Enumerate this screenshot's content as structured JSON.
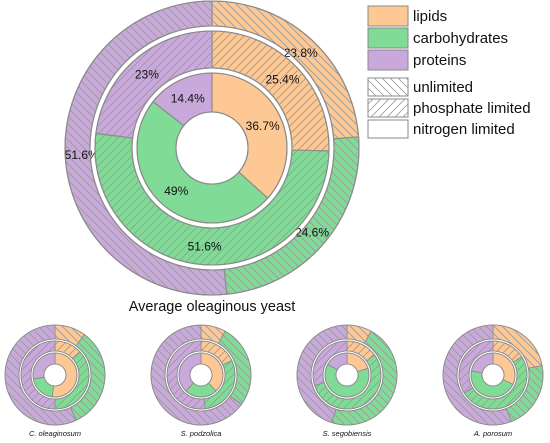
{
  "colors": {
    "lipids": "#fdc893",
    "carbohydrates": "#7fdb95",
    "proteins": "#c9a8dc",
    "stroke": "#8a8a8a",
    "hatch": "#9a9a9a"
  },
  "legend": {
    "components": [
      {
        "key": "lipids",
        "label": "lipids"
      },
      {
        "key": "carbohydrates",
        "label": "carbohydrates"
      },
      {
        "key": "proteins",
        "label": "proteins"
      }
    ],
    "conditions": [
      {
        "key": "unlimited",
        "label": "unlimited",
        "hatch": "backslash"
      },
      {
        "key": "phosphate",
        "label": "phosphate limited",
        "hatch": "slash"
      },
      {
        "key": "nitrogen",
        "label": "nitrogen limited",
        "hatch": "none"
      }
    ],
    "placement": "top-right"
  },
  "chart_data": [
    {
      "type": "pie",
      "variant": "nested-donut",
      "title": "Average oleaginous yeast",
      "ring_order": [
        "unlimited",
        "phosphate limited",
        "nitrogen limited"
      ],
      "categories": [
        "lipids",
        "carbohydrates",
        "proteins"
      ],
      "rings": [
        {
          "condition": "unlimited",
          "values": [
            23.8,
            24.6,
            51.6
          ],
          "labels": [
            "23.8%",
            "24.6%",
            "51.6%"
          ]
        },
        {
          "condition": "phosphate limited",
          "values": [
            25.4,
            51.6,
            23.0
          ],
          "labels": [
            "25.4%",
            "51.6%",
            "23%"
          ]
        },
        {
          "condition": "nitrogen limited",
          "values": [
            36.7,
            49.0,
            14.4
          ],
          "labels": [
            "36.7%",
            "49%",
            "14.4%"
          ]
        }
      ]
    },
    {
      "type": "pie",
      "variant": "nested-donut",
      "title": "C. oleaginosum",
      "ring_order": [
        "unlimited",
        "phosphate limited",
        "nitrogen limited"
      ],
      "categories": [
        "lipids",
        "carbohydrates",
        "proteins"
      ],
      "rings": [
        {
          "condition": "unlimited",
          "values": [
            10,
            33,
            57
          ]
        },
        {
          "condition": "phosphate limited",
          "values": [
            13,
            37,
            50
          ]
        },
        {
          "condition": "nitrogen limited",
          "values": [
            52,
            20,
            28
          ]
        }
      ]
    },
    {
      "type": "pie",
      "variant": "nested-donut",
      "title": "S. podzolica",
      "ring_order": [
        "unlimited",
        "phosphate limited",
        "nitrogen limited"
      ],
      "categories": [
        "lipids",
        "carbohydrates",
        "proteins"
      ],
      "rings": [
        {
          "condition": "unlimited",
          "values": [
            8,
            27,
            65
          ]
        },
        {
          "condition": "phosphate limited",
          "values": [
            18,
            30,
            52
          ]
        },
        {
          "condition": "nitrogen limited",
          "values": [
            38,
            24,
            38
          ]
        }
      ]
    },
    {
      "type": "pie",
      "variant": "nested-donut",
      "title": "S. segobiensis",
      "ring_order": [
        "unlimited",
        "phosphate limited",
        "nitrogen limited"
      ],
      "categories": [
        "lipids",
        "carbohydrates",
        "proteins"
      ],
      "rings": [
        {
          "condition": "unlimited",
          "values": [
            8,
            47,
            45
          ]
        },
        {
          "condition": "phosphate limited",
          "values": [
            15,
            55,
            30
          ]
        },
        {
          "condition": "nitrogen limited",
          "values": [
            20,
            63,
            17
          ]
        }
      ]
    },
    {
      "type": "pie",
      "variant": "nested-donut",
      "title": "A. porosum",
      "ring_order": [
        "unlimited",
        "phosphate limited",
        "nitrogen limited"
      ],
      "categories": [
        "lipids",
        "carbohydrates",
        "proteins"
      ],
      "rings": [
        {
          "condition": "unlimited",
          "values": [
            22,
            22,
            56
          ]
        },
        {
          "condition": "phosphate limited",
          "values": [
            16,
            50,
            34
          ]
        },
        {
          "condition": "nitrogen limited",
          "values": [
            32,
            46,
            22
          ]
        }
      ]
    }
  ]
}
